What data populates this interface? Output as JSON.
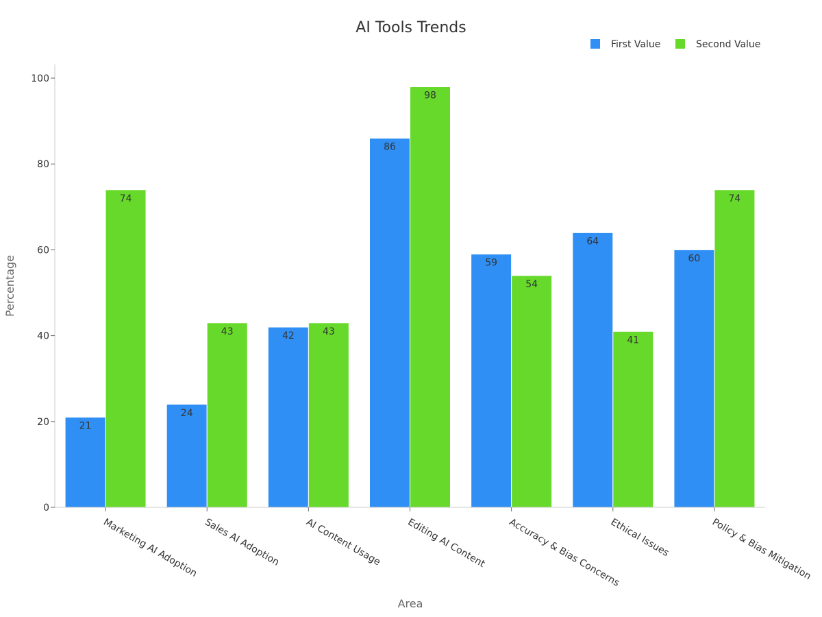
{
  "chart_data": {
    "type": "bar",
    "title": "AI Tools Trends",
    "xlabel": "Area",
    "ylabel": "Percentage",
    "ylim": [
      0,
      100
    ],
    "yticks": [
      0,
      20,
      40,
      60,
      80,
      100
    ],
    "grid": false,
    "legend_position": "top-right",
    "categories": [
      "Marketing AI Adoption",
      "Sales AI Adoption",
      "AI Content Usage",
      "Editing AI Content",
      "Accuracy & Bias Concerns",
      "Ethical Issues",
      "Policy & Bias Mitigation"
    ],
    "series": [
      {
        "name": "First Value",
        "color": "#2f8ff5",
        "values": [
          21,
          24,
          42,
          86,
          59,
          64,
          60
        ]
      },
      {
        "name": "Second Value",
        "color": "#66d92b",
        "values": [
          74,
          43,
          43,
          98,
          54,
          41,
          74
        ]
      }
    ],
    "data_labels": true
  }
}
